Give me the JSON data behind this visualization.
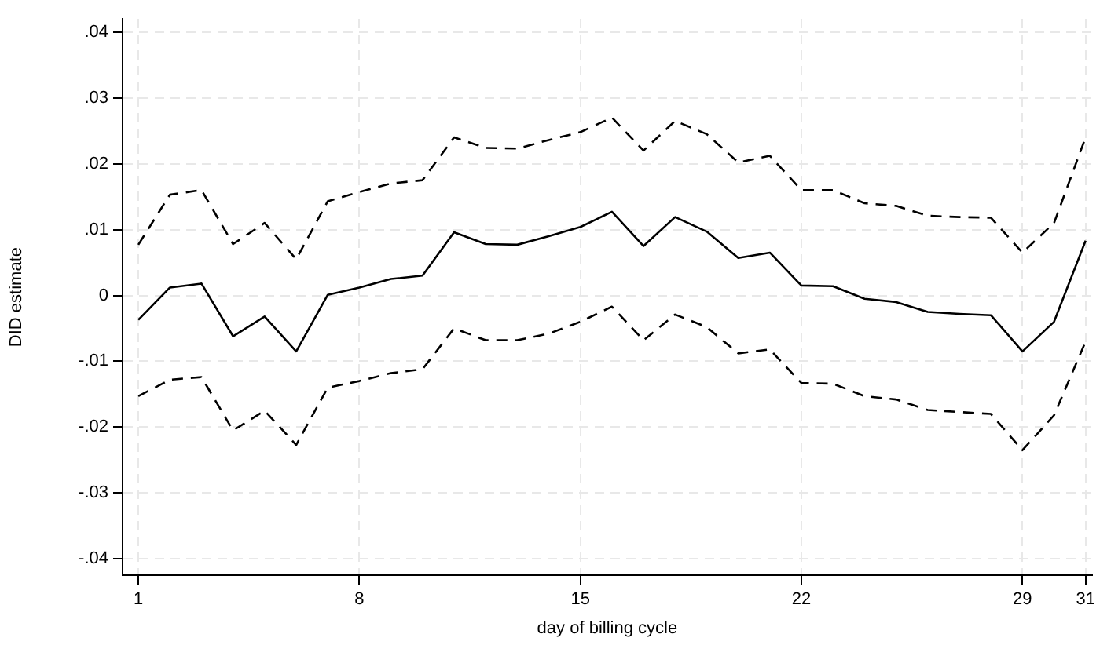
{
  "chart_data": {
    "type": "line",
    "xlabel": "day of billing cycle",
    "ylabel": "DID estimate",
    "x": [
      1,
      2,
      3,
      4,
      5,
      6,
      7,
      8,
      9,
      10,
      11,
      12,
      13,
      14,
      15,
      16,
      17,
      18,
      19,
      20,
      21,
      22,
      23,
      24,
      25,
      26,
      27,
      28,
      29,
      30,
      31
    ],
    "series": [
      {
        "color": "#000000",
        "line_style": "dashed",
        "values": [
          0.0077,
          0.0153,
          0.016,
          0.0078,
          0.011,
          0.0055,
          0.0143,
          0.0157,
          0.017,
          0.0175,
          0.024,
          0.0224,
          0.0223,
          0.0236,
          0.0248,
          0.027,
          0.022,
          0.0265,
          0.0245,
          0.0202,
          0.0212,
          0.016,
          0.016,
          0.014,
          0.0136,
          0.0121,
          0.0119,
          0.0118,
          0.0065,
          0.011,
          0.024
        ]
      },
      {
        "color": "#000000",
        "line_style": "solid",
        "values": [
          -0.0037,
          0.0012,
          0.0018,
          -0.0062,
          -0.0032,
          -0.0085,
          0.0001,
          0.0012,
          0.0025,
          0.003,
          0.0096,
          0.0078,
          0.0077,
          0.009,
          0.0104,
          0.0127,
          0.0075,
          0.0119,
          0.0097,
          0.0057,
          0.0065,
          0.0015,
          0.0014,
          -0.0005,
          -0.001,
          -0.0025,
          -0.0028,
          -0.003,
          -0.0085,
          -0.004,
          0.0083
        ]
      },
      {
        "color": "#000000",
        "line_style": "dashed",
        "values": [
          -0.0153,
          -0.0128,
          -0.0124,
          -0.0205,
          -0.0175,
          -0.0227,
          -0.014,
          -0.013,
          -0.0118,
          -0.0112,
          -0.005,
          -0.0068,
          -0.0068,
          -0.0058,
          -0.004,
          -0.0017,
          -0.0068,
          -0.0029,
          -0.0048,
          -0.0088,
          -0.0082,
          -0.0133,
          -0.0134,
          -0.0153,
          -0.0158,
          -0.0174,
          -0.0177,
          -0.018,
          -0.0235,
          -0.0182,
          -0.007
        ]
      }
    ],
    "xlim": [
      0.5,
      31.2
    ],
    "xticks": [
      1,
      8,
      15,
      22,
      29,
      31
    ],
    "ylim": [
      -0.0425,
      0.042
    ],
    "yticks": [
      {
        "value": -0.04,
        "label": "-.04"
      },
      {
        "value": -0.03,
        "label": "-.03"
      },
      {
        "value": -0.02,
        "label": "-.02"
      },
      {
        "value": -0.01,
        "label": "-.01"
      },
      {
        "value": 0,
        "label": "0"
      },
      {
        "value": 0.01,
        "label": ".01"
      },
      {
        "value": 0.02,
        "label": ".02"
      },
      {
        "value": 0.03,
        "label": ".03"
      },
      {
        "value": 0.04,
        "label": ".04"
      }
    ],
    "grid": true,
    "legend": false,
    "marker": "none"
  }
}
